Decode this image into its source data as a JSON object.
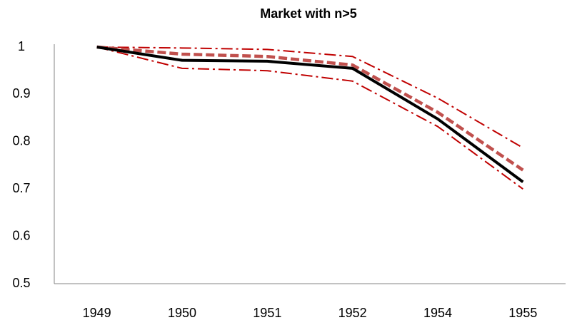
{
  "chart_data": {
    "type": "line",
    "title": "Market with n>5",
    "categories": [
      "1949",
      "1950",
      "1951",
      "1952",
      "1954",
      "1955"
    ],
    "series": [
      {
        "color": "#c00000",
        "dash": "dashdot",
        "values": [
          1,
          0.998,
          0.995,
          0.98,
          0.892,
          0.787
        ]
      },
      {
        "color": "#c00000",
        "dash": "dashdot",
        "values": [
          1,
          0.955,
          0.95,
          0.928,
          0.832,
          0.7
        ]
      },
      {
        "color": "#c0504d",
        "dash": "dash",
        "values": [
          1,
          0.985,
          0.98,
          0.962,
          0.862,
          0.74
        ]
      },
      {
        "color": "#000000",
        "dash": "solid",
        "values": [
          1,
          0.972,
          0.97,
          0.955,
          0.848,
          0.715
        ]
      }
    ],
    "ylim": [
      0.5,
      1
    ],
    "yticks": [
      0.5,
      0.6,
      0.7,
      0.8,
      0.9,
      1
    ],
    "grid": false
  }
}
